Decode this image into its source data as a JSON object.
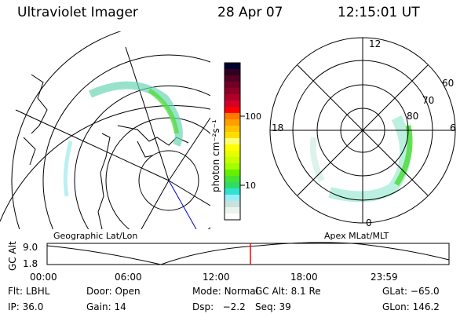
{
  "header": {
    "instrument": "Ultraviolet Imager",
    "date": "28 Apr 07",
    "time": "12:15:01 UT"
  },
  "colorbar": {
    "unit_label": "photon cm⁻²s⁻¹",
    "ticks": [
      "100",
      "10"
    ],
    "colors": [
      "#00002e",
      "#2e0022",
      "#520024",
      "#720024",
      "#8e0026",
      "#b00028",
      "#d4002a",
      "#ff0000",
      "#ff7a00",
      "#ff9e00",
      "#ffc200",
      "#ffde00",
      "#ffff78",
      "#ffff00",
      "#e6ff00",
      "#c8ff00",
      "#a2ff00",
      "#66f000",
      "#44e434",
      "#30dc66",
      "#2ee2d4",
      "#98eef8",
      "#cce0de",
      "#eaf4ee",
      "#ffffff"
    ]
  },
  "left_map": {
    "label": "Geographic Lat/Lon"
  },
  "right_map": {
    "label": "Apex MLat/MLT",
    "mlt_labels": [
      "12",
      "18",
      "6",
      "0"
    ],
    "lat_labels": [
      "60",
      "70",
      "80"
    ]
  },
  "altitude_plot": {
    "ylabel": "GC Alt",
    "yticks": [
      "9.0",
      "1.8"
    ],
    "xticks": [
      "00:00",
      "06:00",
      "12:00",
      "18:00",
      "23:59"
    ],
    "current_time_marker": "12:15",
    "marker_color": "#ff0000"
  },
  "status": [
    {
      "label": "Flt:",
      "value": "LBHL"
    },
    {
      "label": "Door:",
      "value": "Open"
    },
    {
      "label": "Mode:",
      "value": "Normal"
    },
    {
      "label": "GC Alt:",
      "value": "8.1 Re"
    },
    {
      "label": "GLat:",
      "value": "−65.0"
    },
    {
      "label": "IP:",
      "value": "36.0"
    },
    {
      "label": "Gain:",
      "value": "14"
    },
    {
      "label": "Dsp:",
      "value": "  −2.2"
    },
    {
      "label": "Seq:",
      "value": "39"
    },
    {
      "label": "GLon:",
      "value": "146.2"
    }
  ]
}
